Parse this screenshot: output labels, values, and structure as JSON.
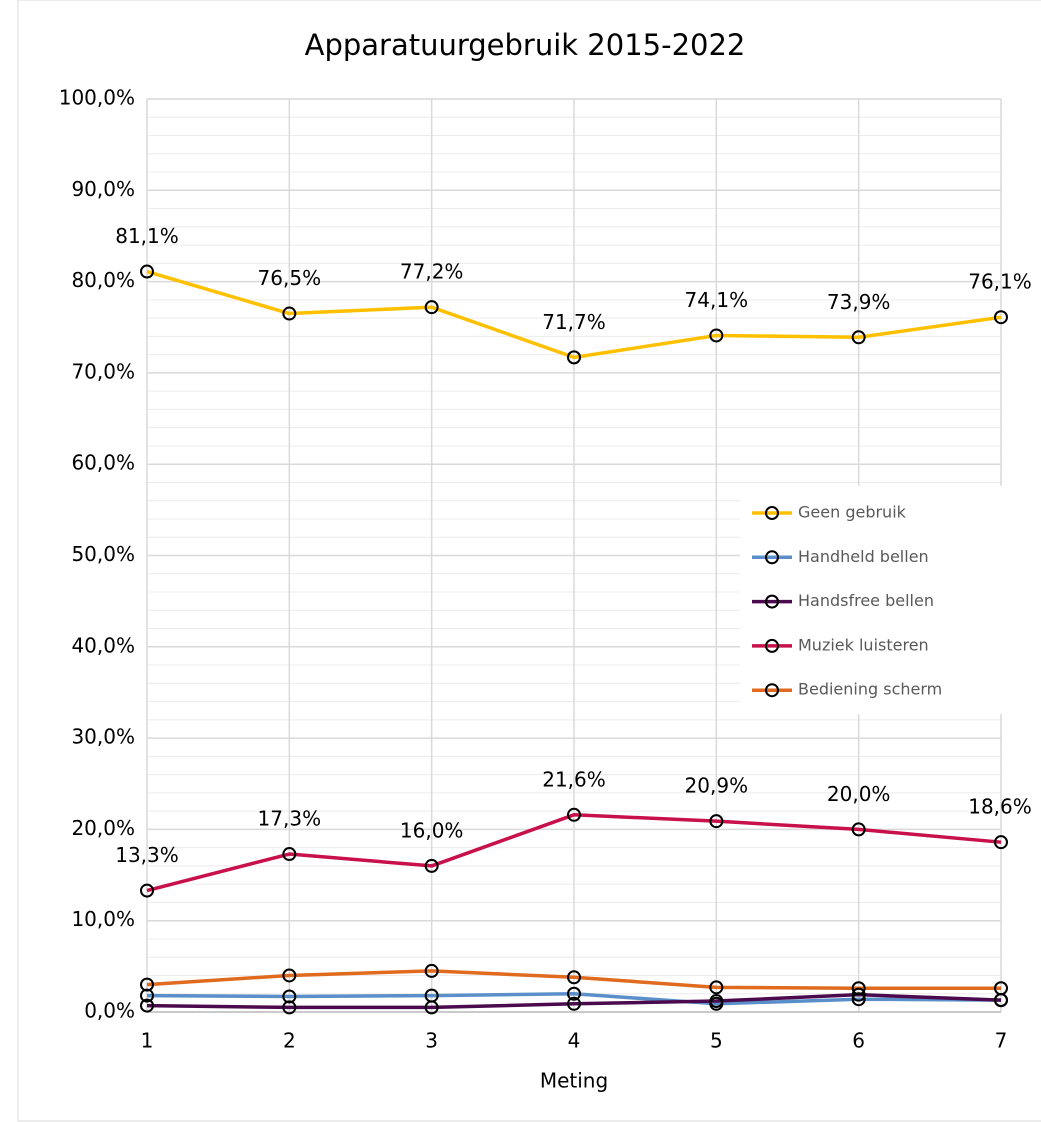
{
  "chart_data": {
    "type": "line",
    "title": "Apparatuurgebruik 2015-2022",
    "x_label": "Meting",
    "x": [
      1,
      2,
      3,
      4,
      5,
      6,
      7
    ],
    "xlim": [
      1,
      7
    ],
    "xticks": [
      1,
      2,
      3,
      4,
      5,
      6,
      7
    ],
    "ylim": [
      0,
      100
    ],
    "yticks": [
      {
        "value": 0,
        "label": "0,0%"
      },
      {
        "value": 10,
        "label": "10,0%"
      },
      {
        "value": 20,
        "label": "20,0%"
      },
      {
        "value": 30,
        "label": "30,0%"
      },
      {
        "value": 40,
        "label": "40,0%"
      },
      {
        "value": 50,
        "label": "50,0%"
      },
      {
        "value": 60,
        "label": "60,0%"
      },
      {
        "value": 70,
        "label": "70,0%"
      },
      {
        "value": 80,
        "label": "80,0%"
      },
      {
        "value": 90,
        "label": "90,0%"
      },
      {
        "value": 100,
        "label": "100,0%"
      }
    ],
    "yminorticks": [
      2,
      4,
      6,
      8,
      12,
      14,
      16,
      18,
      22,
      24,
      26,
      28,
      32,
      34,
      36,
      38,
      42,
      44,
      46,
      48,
      52,
      54,
      56,
      58,
      62,
      64,
      66,
      68,
      72,
      74,
      76,
      78,
      82,
      84,
      86,
      88,
      92,
      94,
      96,
      98
    ],
    "grid": true,
    "legend": "right",
    "series": [
      {
        "name": "Geen gebruik",
        "color": "#ffc000",
        "values": [
          81.1,
          76.5,
          77.2,
          71.7,
          74.1,
          73.9,
          76.1
        ],
        "value_labels": [
          "81,1%",
          "76,5%",
          "77,2%",
          "71,7%",
          "74,1%",
          "73,9%",
          "76,1%"
        ]
      },
      {
        "name": "Handheld bellen",
        "color": "#5b8fc9",
        "values": [
          1.8,
          1.7,
          1.8,
          2.0,
          0.9,
          1.4,
          1.3
        ]
      },
      {
        "name": "Handsfree bellen",
        "color": "#4b0a4e",
        "values": [
          0.7,
          0.5,
          0.5,
          0.9,
          1.2,
          1.9,
          1.3
        ]
      },
      {
        "name": "Muziek luisteren",
        "color": "#c8104a",
        "values": [
          13.3,
          17.3,
          16.0,
          21.6,
          20.9,
          20.0,
          18.6
        ],
        "value_labels": [
          "13,3%",
          "17,3%",
          "16,0%",
          "21,6%",
          "20,9%",
          "20,0%",
          "18,6%"
        ]
      },
      {
        "name": "Bediening scherm",
        "color": "#e06a1e",
        "values": [
          3.0,
          4.0,
          4.5,
          3.8,
          2.7,
          2.6,
          2.6
        ]
      }
    ]
  }
}
